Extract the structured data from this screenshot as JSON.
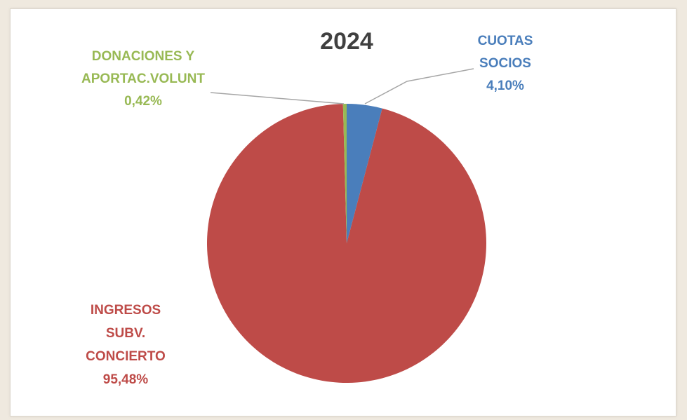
{
  "chart_data": {
    "type": "pie",
    "title": "2024",
    "slices": [
      {
        "label_lines": [
          "CUOTAS",
          "SOCIOS"
        ],
        "value_text": "4,10%",
        "value": 4.1,
        "color": "#4a7ebb"
      },
      {
        "label_lines": [
          "INGRESOS",
          "SUBV.",
          "CONCIERTO"
        ],
        "value_text": "95,48%",
        "value": 95.48,
        "color": "#be4b48"
      },
      {
        "label_lines": [
          "DONACIONES Y",
          "APORTAC.VOLUNT"
        ],
        "value_text": "0,42%",
        "value": 0.42,
        "color": "#98b954"
      }
    ],
    "start_angle_deg": 0,
    "direction": "clockwise",
    "legend": "none"
  }
}
